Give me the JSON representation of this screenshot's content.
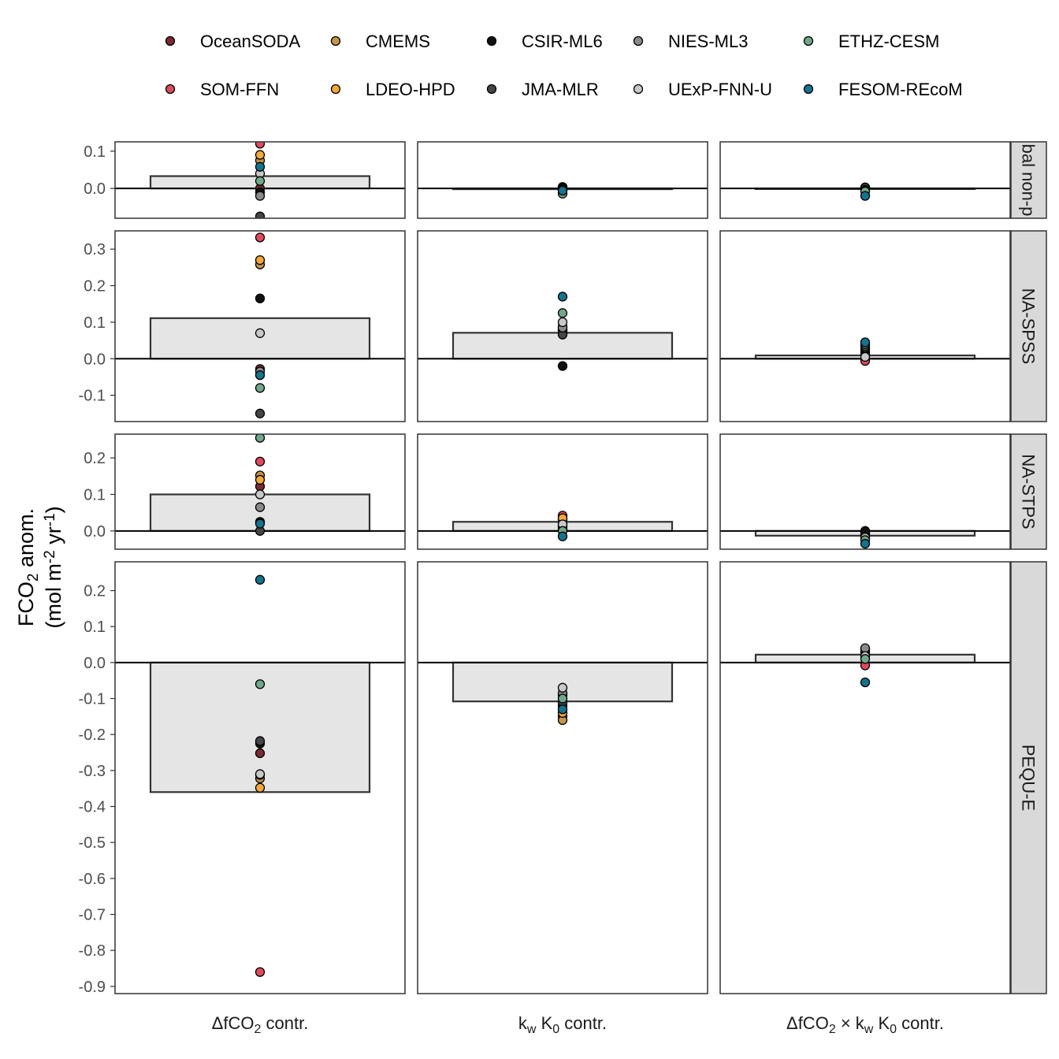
{
  "chart_data": {
    "type": "bar+scatter",
    "ylabel": "FCO₂ anom. (mol m⁻² yr⁻¹)",
    "ylabel_line1": "FCO",
    "ylabel_line1_sub": "2",
    "ylabel_line1_rest": " anom.",
    "ylabel_line2": "(mol m",
    "ylabel_line2_sup1": "-2",
    "ylabel_line2_mid": " yr",
    "ylabel_line2_sup2": "-1",
    "ylabel_line2_end": ")",
    "legend_position": "top",
    "columns": [
      {
        "label": "ΔfCO₂ contr.",
        "parts": [
          [
            "ΔfCO",
            "n"
          ],
          [
            "2",
            "sub"
          ],
          [
            " contr.",
            "n"
          ]
        ]
      },
      {
        "label": "kw K0 contr.",
        "parts": [
          [
            "k",
            "n"
          ],
          [
            "w",
            "sub"
          ],
          [
            " K",
            "n"
          ],
          [
            "0",
            "sub"
          ],
          [
            " contr.",
            "n"
          ]
        ]
      },
      {
        "label": "ΔfCO₂ × kw K0 contr.",
        "parts": [
          [
            "ΔfCO",
            "n"
          ],
          [
            "2",
            "sub"
          ],
          [
            " × k",
            "n"
          ],
          [
            "w",
            "sub"
          ],
          [
            " K",
            "n"
          ],
          [
            "0",
            "sub"
          ],
          [
            " contr.",
            "n"
          ]
        ]
      }
    ],
    "products": [
      {
        "name": "OceanSODA",
        "color": "#7a2b33"
      },
      {
        "name": "SOM-FFN",
        "color": "#dd4b5e"
      },
      {
        "name": "CMEMS",
        "color": "#c4954a"
      },
      {
        "name": "LDEO-HPD",
        "color": "#f2a83c"
      },
      {
        "name": "CSIR-ML6",
        "color": "#111111"
      },
      {
        "name": "JMA-MLR",
        "color": "#454545"
      },
      {
        "name": "NIES-ML3",
        "color": "#8a8a8a"
      },
      {
        "name": "UExP-FNN-U",
        "color": "#c8c8c8"
      },
      {
        "name": "ETHZ-CESM",
        "color": "#6fa888"
      },
      {
        "name": "FESOM-REcoM",
        "color": "#15738e"
      }
    ],
    "legend_order": [
      [
        "OceanSODA",
        "CMEMS",
        "CSIR-ML6",
        "NIES-ML3",
        "ETHZ-CESM"
      ],
      [
        "SOM-FFN",
        "LDEO-HPD",
        "JMA-MLR",
        "UExP-FNN-U",
        "FESOM-REcoM"
      ]
    ],
    "rows": [
      {
        "strip_label": "Global non-polar",
        "strip_visible": "bal non-p",
        "ylim": [
          -0.08,
          0.125
        ],
        "yticks": [
          0.0,
          0.1
        ],
        "ytick_labels": [
          "0.0",
          "0.1"
        ],
        "bars": [
          0.033,
          -0.002,
          -0.001
        ],
        "points": [
          {
            "OceanSODA": 0.0,
            "SOM-FFN": 0.12,
            "CMEMS": 0.075,
            "LDEO-HPD": 0.09,
            "CSIR-ML6": -0.01,
            "JMA-MLR": -0.075,
            "NIES-ML3": -0.02,
            "UExP-FNN-U": 0.04,
            "ETHZ-CESM": 0.02,
            "FESOM-REcoM": 0.058
          },
          {
            "OceanSODA": 0.002,
            "SOM-FFN": 0.004,
            "CMEMS": 0.0,
            "LDEO-HPD": 0.003,
            "CSIR-ML6": -0.004,
            "JMA-MLR": 0.001,
            "NIES-ML3": 0.0,
            "UExP-FNN-U": -0.003,
            "ETHZ-CESM": -0.014,
            "FESOM-REcoM": -0.006
          },
          {
            "OceanSODA": 0.001,
            "SOM-FFN": 0.003,
            "CMEMS": 0.002,
            "LDEO-HPD": 0.0,
            "CSIR-ML6": -0.002,
            "JMA-MLR": 0.002,
            "NIES-ML3": -0.004,
            "UExP-FNN-U": -0.006,
            "ETHZ-CESM": -0.008,
            "FESOM-REcoM": -0.02
          }
        ]
      },
      {
        "strip_label": "NA-SPSS",
        "strip_visible": "NA-SPSS",
        "ylim": [
          -0.172,
          0.35
        ],
        "yticks": [
          -0.1,
          0.0,
          0.1,
          0.2,
          0.3
        ],
        "ytick_labels": [
          "-0.1",
          "0.0",
          "0.1",
          "0.2",
          "0.3"
        ],
        "bars": [
          0.111,
          0.071,
          0.009
        ],
        "points": [
          {
            "OceanSODA": -0.028,
            "SOM-FFN": 0.332,
            "CMEMS": 0.258,
            "LDEO-HPD": 0.27,
            "CSIR-ML6": 0.165,
            "JMA-MLR": -0.15,
            "NIES-ML3": -0.035,
            "UExP-FNN-U": 0.07,
            "ETHZ-CESM": -0.08,
            "FESOM-REcoM": -0.045
          },
          {
            "OceanSODA": 0.08,
            "SOM-FFN": 0.088,
            "CMEMS": 0.072,
            "LDEO-HPD": 0.078,
            "CSIR-ML6": -0.02,
            "JMA-MLR": 0.066,
            "NIES-ML3": 0.085,
            "UExP-FNN-U": 0.1,
            "ETHZ-CESM": 0.125,
            "FESOM-REcoM": 0.17
          },
          {
            "OceanSODA": 0.02,
            "SOM-FFN": -0.006,
            "CMEMS": 0.015,
            "LDEO-HPD": 0.01,
            "CSIR-ML6": 0.025,
            "JMA-MLR": 0.03,
            "NIES-ML3": 0.035,
            "UExP-FNN-U": 0.005,
            "ETHZ-CESM": 0.04,
            "FESOM-REcoM": 0.045
          }
        ]
      },
      {
        "strip_label": "NA-STPS",
        "strip_visible": "NA-STPS",
        "ylim": [
          -0.05,
          0.265
        ],
        "yticks": [
          0.0,
          0.1,
          0.2
        ],
        "ytick_labels": [
          "0.0",
          "0.1",
          "0.2"
        ],
        "bars": [
          0.1,
          0.025,
          -0.013
        ],
        "points": [
          {
            "OceanSODA": 0.122,
            "SOM-FFN": 0.19,
            "CMEMS": 0.152,
            "LDEO-HPD": 0.14,
            "CSIR-ML6": 0.025,
            "JMA-MLR": 0.0,
            "NIES-ML3": 0.065,
            "UExP-FNN-U": 0.1,
            "ETHZ-CESM": 0.255,
            "FESOM-REcoM": 0.02
          },
          {
            "OceanSODA": 0.03,
            "SOM-FFN": 0.042,
            "CMEMS": 0.02,
            "LDEO-HPD": 0.035,
            "CSIR-ML6": 0.01,
            "JMA-MLR": 0.005,
            "NIES-ML3": 0.015,
            "UExP-FNN-U": 0.018,
            "ETHZ-CESM": 0.0,
            "FESOM-REcoM": -0.015
          },
          {
            "OceanSODA": -0.008,
            "SOM-FFN": -0.005,
            "CMEMS": -0.01,
            "LDEO-HPD": -0.012,
            "CSIR-ML6": 0.0,
            "JMA-MLR": -0.02,
            "NIES-ML3": -0.015,
            "UExP-FNN-U": -0.018,
            "ETHZ-CESM": -0.025,
            "FESOM-REcoM": -0.035
          }
        ]
      },
      {
        "strip_label": "PEQU-E",
        "strip_visible": "PEQU-E",
        "ylim": [
          -0.92,
          0.28
        ],
        "yticks": [
          -0.9,
          -0.8,
          -0.7,
          -0.6,
          -0.5,
          -0.4,
          -0.3,
          -0.2,
          -0.1,
          0.0,
          0.1,
          0.2
        ],
        "ytick_labels": [
          "-0.9",
          "-0.8",
          "-0.7",
          "-0.6",
          "-0.5",
          "-0.4",
          "-0.3",
          "-0.2",
          "-0.1",
          "0.0",
          "0.1",
          "0.2"
        ],
        "bars": [
          -0.36,
          -0.108,
          0.022
        ],
        "points": [
          {
            "OceanSODA": -0.252,
            "SOM-FFN": -0.86,
            "CMEMS": -0.322,
            "LDEO-HPD": -0.348,
            "CSIR-ML6": -0.225,
            "JMA-MLR": -0.218,
            "NIES-ML3": -0.312,
            "UExP-FNN-U": -0.31,
            "ETHZ-CESM": -0.06,
            "FESOM-REcoM": 0.23
          },
          {
            "OceanSODA": -0.12,
            "SOM-FFN": -0.15,
            "CMEMS": -0.16,
            "LDEO-HPD": -0.14,
            "CSIR-ML6": -0.09,
            "JMA-MLR": -0.11,
            "NIES-ML3": -0.085,
            "UExP-FNN-U": -0.07,
            "ETHZ-CESM": -0.1,
            "FESOM-REcoM": -0.13
          },
          {
            "OceanSODA": 0.03,
            "SOM-FFN": -0.008,
            "CMEMS": 0.025,
            "LDEO-HPD": 0.02,
            "CSIR-ML6": 0.035,
            "JMA-MLR": 0.038,
            "NIES-ML3": 0.04,
            "UExP-FNN-U": 0.018,
            "ETHZ-CESM": 0.01,
            "FESOM-REcoM": -0.055
          }
        ]
      }
    ]
  }
}
